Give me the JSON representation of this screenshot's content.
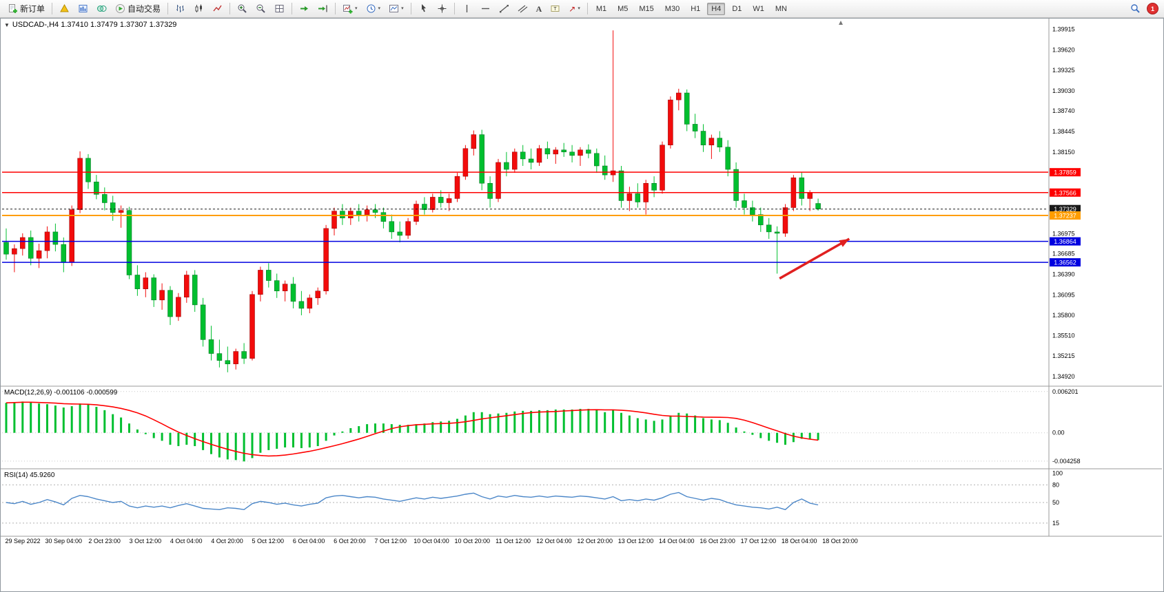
{
  "toolbar": {
    "new_order": "新订单",
    "auto_trading": "自动交易",
    "timeframes": [
      "M1",
      "M5",
      "M15",
      "M30",
      "H1",
      "H4",
      "D1",
      "W1",
      "MN"
    ],
    "active_timeframe": "H4",
    "badge_count": "1"
  },
  "icons": {
    "chart_menu": "▼",
    "dropdown": "▾",
    "arrows_tool": "↗",
    "text_tool": "A",
    "label_tool": "T"
  },
  "chart_data": [
    {
      "type": "candlestick",
      "symbol": "USDCAD-",
      "timeframe": "H4",
      "title": "USDCAD-,H4 1.37410 1.37479 1.37307 1.37329",
      "open": "1.37410",
      "high": "1.37479",
      "low": "1.37307",
      "close": "1.37329",
      "bull_color": "#f20c0c",
      "bear_color": "#00bf2f",
      "price_min": 1.348,
      "price_max": 1.4005,
      "price_ticks": [
        "1.39915",
        "1.39620",
        "1.39325",
        "1.39030",
        "1.38740",
        "1.38445",
        "1.38150",
        "1.36975",
        "1.36685",
        "1.36390",
        "1.36095",
        "1.35800",
        "1.35510",
        "1.35215",
        "1.34920"
      ],
      "levels": [
        {
          "value": 1.37859,
          "label": "1.37859",
          "color": "#fe0000",
          "width": 1.5
        },
        {
          "value": 1.37566,
          "label": "1.37566",
          "color": "#fe0000",
          "width": 1.5
        },
        {
          "value": 1.37329,
          "label": "1.37329",
          "color": "#1a1a1a",
          "width": 1,
          "dashed": true
        },
        {
          "value": 1.37237,
          "label": "1.37237",
          "color": "#ff9d00",
          "width": 2
        },
        {
          "value": 1.36864,
          "label": "1.36864",
          "color": "#0000e0",
          "width": 1.5
        },
        {
          "value": 1.36562,
          "label": "1.36562",
          "color": "#0000e0",
          "width": 1.5
        }
      ],
      "time_labels": [
        "29 Sep 2022",
        "30 Sep 04:00",
        "2 Oct 23:00",
        "3 Oct 12:00",
        "4 Oct 04:00",
        "4 Oct 20:00",
        "5 Oct 12:00",
        "6 Oct 04:00",
        "6 Oct 20:00",
        "7 Oct 12:00",
        "10 Oct 04:00",
        "10 Oct 20:00",
        "11 Oct 12:00",
        "12 Oct 04:00",
        "12 Oct 20:00",
        "13 Oct 12:00",
        "14 Oct 04:00",
        "16 Oct 23:00",
        "17 Oct 12:00",
        "18 Oct 04:00",
        "18 Oct 20:00"
      ],
      "annotation_arrow": {
        "from": {
          "index": 94.3,
          "price": 1.3633
        },
        "to": {
          "index": 102.8,
          "price": 1.369
        },
        "color": "#e02020"
      },
      "candles": [
        [
          1.3685,
          1.3705,
          1.366,
          1.3668
        ],
        [
          1.3668,
          1.3682,
          1.3642,
          1.3676
        ],
        [
          1.3676,
          1.3698,
          1.3666,
          1.3692
        ],
        [
          1.3692,
          1.3702,
          1.3652,
          1.3662
        ],
        [
          1.3662,
          1.3683,
          1.3648,
          1.3673
        ],
        [
          1.3673,
          1.3708,
          1.3662,
          1.37
        ],
        [
          1.37,
          1.3712,
          1.3672,
          1.3682
        ],
        [
          1.3682,
          1.3692,
          1.3642,
          1.3656
        ],
        [
          1.3656,
          1.3738,
          1.3651,
          1.3732
        ],
        [
          1.3732,
          1.3816,
          1.3727,
          1.3806
        ],
        [
          1.3806,
          1.3812,
          1.3762,
          1.3772
        ],
        [
          1.3772,
          1.3782,
          1.3747,
          1.3754
        ],
        [
          1.3754,
          1.3764,
          1.3731,
          1.3742
        ],
        [
          1.3742,
          1.3752,
          1.3716,
          1.3728
        ],
        [
          1.3728,
          1.3738,
          1.3706,
          1.3731
        ],
        [
          1.3731,
          1.3736,
          1.3632,
          1.3638
        ],
        [
          1.3638,
          1.3652,
          1.3608,
          1.3618
        ],
        [
          1.3618,
          1.3642,
          1.3606,
          1.3634
        ],
        [
          1.3634,
          1.3639,
          1.3592,
          1.3602
        ],
        [
          1.3602,
          1.3626,
          1.3588,
          1.3616
        ],
        [
          1.3616,
          1.3622,
          1.3566,
          1.3578
        ],
        [
          1.3578,
          1.3612,
          1.3572,
          1.3606
        ],
        [
          1.3606,
          1.3644,
          1.3598,
          1.3638
        ],
        [
          1.3638,
          1.3645,
          1.3585,
          1.3595
        ],
        [
          1.3595,
          1.3605,
          1.3535,
          1.3545
        ],
        [
          1.3545,
          1.3565,
          1.3515,
          1.3525
        ],
        [
          1.3525,
          1.3545,
          1.3505,
          1.3515
        ],
        [
          1.3515,
          1.3535,
          1.3498,
          1.351
        ],
        [
          1.351,
          1.3532,
          1.3502,
          1.3528
        ],
        [
          1.3528,
          1.354,
          1.351,
          1.3518
        ],
        [
          1.3518,
          1.3615,
          1.3515,
          1.361
        ],
        [
          1.361,
          1.365,
          1.36,
          1.3645
        ],
        [
          1.3645,
          1.3655,
          1.362,
          1.363
        ],
        [
          1.363,
          1.364,
          1.3605,
          1.3615
        ],
        [
          1.3615,
          1.363,
          1.36,
          1.3625
        ],
        [
          1.3625,
          1.3635,
          1.359,
          1.36
        ],
        [
          1.36,
          1.3615,
          1.358,
          1.359
        ],
        [
          1.359,
          1.361,
          1.3583,
          1.3605
        ],
        [
          1.3605,
          1.362,
          1.3595,
          1.3615
        ],
        [
          1.3615,
          1.371,
          1.361,
          1.3705
        ],
        [
          1.3705,
          1.3735,
          1.3695,
          1.373
        ],
        [
          1.373,
          1.374,
          1.371,
          1.372
        ],
        [
          1.372,
          1.3735,
          1.371,
          1.373
        ],
        [
          1.373,
          1.374,
          1.3715,
          1.3725
        ],
        [
          1.3725,
          1.3738,
          1.3715,
          1.3732
        ],
        [
          1.3732,
          1.374,
          1.372,
          1.3728
        ],
        [
          1.3728,
          1.3735,
          1.3705,
          1.3715
        ],
        [
          1.3715,
          1.3725,
          1.369,
          1.37
        ],
        [
          1.37,
          1.3715,
          1.3685,
          1.3695
        ],
        [
          1.3695,
          1.372,
          1.369,
          1.3715
        ],
        [
          1.3715,
          1.3745,
          1.371,
          1.374
        ],
        [
          1.374,
          1.375,
          1.3725,
          1.3732
        ],
        [
          1.3732,
          1.3755,
          1.3728,
          1.375
        ],
        [
          1.375,
          1.376,
          1.3735,
          1.3742
        ],
        [
          1.3742,
          1.3755,
          1.373,
          1.3748
        ],
        [
          1.3748,
          1.3785,
          1.3743,
          1.378
        ],
        [
          1.378,
          1.3825,
          1.3775,
          1.382
        ],
        [
          1.382,
          1.3846,
          1.381,
          1.384
        ],
        [
          1.384,
          1.3847,
          1.376,
          1.377
        ],
        [
          1.377,
          1.378,
          1.3735,
          1.3748
        ],
        [
          1.3748,
          1.3805,
          1.3743,
          1.38
        ],
        [
          1.38,
          1.3815,
          1.378,
          1.379
        ],
        [
          1.379,
          1.382,
          1.3785,
          1.3815
        ],
        [
          1.3815,
          1.3825,
          1.3795,
          1.3805
        ],
        [
          1.3805,
          1.382,
          1.379,
          1.38
        ],
        [
          1.38,
          1.3825,
          1.3795,
          1.382
        ],
        [
          1.382,
          1.383,
          1.3805,
          1.3812
        ],
        [
          1.3812,
          1.3822,
          1.3798,
          1.3818
        ],
        [
          1.3818,
          1.3828,
          1.3808,
          1.3815
        ],
        [
          1.3815,
          1.3825,
          1.38,
          1.381
        ],
        [
          1.381,
          1.3822,
          1.3795,
          1.3818
        ],
        [
          1.3818,
          1.3826,
          1.3806,
          1.3813
        ],
        [
          1.3813,
          1.382,
          1.3785,
          1.3795
        ],
        [
          1.3795,
          1.381,
          1.3775,
          1.3782
        ],
        [
          1.3782,
          1.399,
          1.3772,
          1.3788
        ],
        [
          1.3788,
          1.3795,
          1.3735,
          1.3745
        ],
        [
          1.3745,
          1.3765,
          1.373,
          1.3755
        ],
        [
          1.3755,
          1.377,
          1.3735,
          1.3743
        ],
        [
          1.3743,
          1.3775,
          1.3725,
          1.377
        ],
        [
          1.377,
          1.378,
          1.375,
          1.376
        ],
        [
          1.376,
          1.383,
          1.3755,
          1.3825
        ],
        [
          1.3825,
          1.3895,
          1.382,
          1.389
        ],
        [
          1.389,
          1.3906,
          1.3875,
          1.39
        ],
        [
          1.39,
          1.3905,
          1.3845,
          1.3855
        ],
        [
          1.3855,
          1.387,
          1.3835,
          1.3845
        ],
        [
          1.3845,
          1.3855,
          1.3815,
          1.3825
        ],
        [
          1.3825,
          1.384,
          1.3805,
          1.3835
        ],
        [
          1.3835,
          1.3845,
          1.3815,
          1.3822
        ],
        [
          1.3822,
          1.3832,
          1.378,
          1.379
        ],
        [
          1.379,
          1.38,
          1.3735,
          1.3745
        ],
        [
          1.3745,
          1.3755,
          1.3725,
          1.3735
        ],
        [
          1.3735,
          1.3745,
          1.3715,
          1.3725
        ],
        [
          1.3725,
          1.3735,
          1.37,
          1.371
        ],
        [
          1.371,
          1.372,
          1.369,
          1.37
        ],
        [
          1.37,
          1.3708,
          1.364,
          1.3698
        ],
        [
          1.3698,
          1.374,
          1.3693,
          1.3735
        ],
        [
          1.3735,
          1.3782,
          1.373,
          1.3778
        ],
        [
          1.3778,
          1.3786,
          1.3738,
          1.3748
        ],
        [
          1.3748,
          1.376,
          1.373,
          1.3756
        ],
        [
          1.3741,
          1.37479,
          1.37307,
          1.37329
        ]
      ]
    },
    {
      "type": "macd-histogram",
      "title": "MACD(12,26,9) -0.001106 -0.000599",
      "indicator": "MACD",
      "params": "12,26,9",
      "value_main": "-0.001106",
      "value_signal": "-0.000599",
      "histogram_color": "#00bf2f",
      "signal_color": "#ff0000",
      "signal_period": 9,
      "ymin": -0.0052,
      "ymax": 0.0068,
      "axis": [
        {
          "value": 0.006201,
          "text": "0.006201"
        },
        {
          "value": 0,
          "text": "0.00",
          "dashed": true
        },
        {
          "value": -0.004258,
          "text": "-0.004258"
        }
      ],
      "values": [
        0.0045,
        0.0046,
        0.0047,
        0.0046,
        0.0044,
        0.0043,
        0.0041,
        0.0038,
        0.004,
        0.0044,
        0.0043,
        0.0039,
        0.0034,
        0.0028,
        0.0023,
        0.0014,
        0.0005,
        -0.0002,
        -0.0008,
        -0.0012,
        -0.0018,
        -0.002,
        -0.0018,
        -0.002,
        -0.0026,
        -0.0032,
        -0.0037,
        -0.004,
        -0.0041,
        -0.0043,
        -0.0038,
        -0.003,
        -0.0026,
        -0.0024,
        -0.0022,
        -0.0022,
        -0.0023,
        -0.0022,
        -0.002,
        -0.0012,
        -0.0004,
        0.0002,
        0.0007,
        0.001,
        0.0013,
        0.0014,
        0.0014,
        0.0013,
        0.0012,
        0.0012,
        0.0013,
        0.0014,
        0.0016,
        0.0017,
        0.0018,
        0.0021,
        0.0026,
        0.0031,
        0.0031,
        0.0028,
        0.0029,
        0.003,
        0.0032,
        0.0033,
        0.0033,
        0.0034,
        0.0034,
        0.0035,
        0.0035,
        0.0035,
        0.0036,
        0.0036,
        0.0034,
        0.0031,
        0.0034,
        0.003,
        0.0026,
        0.0022,
        0.002,
        0.0018,
        0.002,
        0.0026,
        0.003,
        0.0029,
        0.0026,
        0.0022,
        0.002,
        0.0019,
        0.0015,
        0.0008,
        0.0002,
        -0.0003,
        -0.0008,
        -0.0012,
        -0.0015,
        -0.0018,
        -0.0014,
        -0.0009,
        -0.0009,
        -0.0011
      ]
    },
    {
      "type": "line",
      "title": "RSI(14) 45.9260",
      "indicator": "RSI",
      "params": "14",
      "value": "45.9260",
      "line_color": "#4a86c8",
      "ymin": 0,
      "ymax": 100,
      "axis": [
        {
          "value": 100,
          "text": "100"
        },
        {
          "value": 80,
          "text": "80",
          "dashed": true
        },
        {
          "value": 50,
          "text": "50",
          "dashed": true
        },
        {
          "value": 15,
          "text": "15",
          "dashed": true
        }
      ],
      "values": [
        50,
        48,
        52,
        47,
        50,
        55,
        51,
        46,
        57,
        62,
        60,
        56,
        53,
        50,
        52,
        44,
        41,
        44,
        42,
        44,
        41,
        45,
        48,
        44,
        40,
        39,
        38,
        41,
        40,
        38,
        48,
        52,
        50,
        47,
        49,
        46,
        44,
        47,
        49,
        58,
        61,
        62,
        60,
        58,
        60,
        59,
        56,
        54,
        52,
        55,
        58,
        56,
        59,
        57,
        59,
        61,
        64,
        66,
        60,
        56,
        61,
        59,
        62,
        60,
        59,
        61,
        59,
        61,
        60,
        59,
        61,
        60,
        58,
        56,
        60,
        53,
        55,
        53,
        56,
        54,
        58,
        64,
        67,
        60,
        57,
        54,
        57,
        55,
        50,
        46,
        44,
        42,
        41,
        39,
        42,
        38,
        50,
        56,
        49,
        45.93
      ]
    }
  ]
}
